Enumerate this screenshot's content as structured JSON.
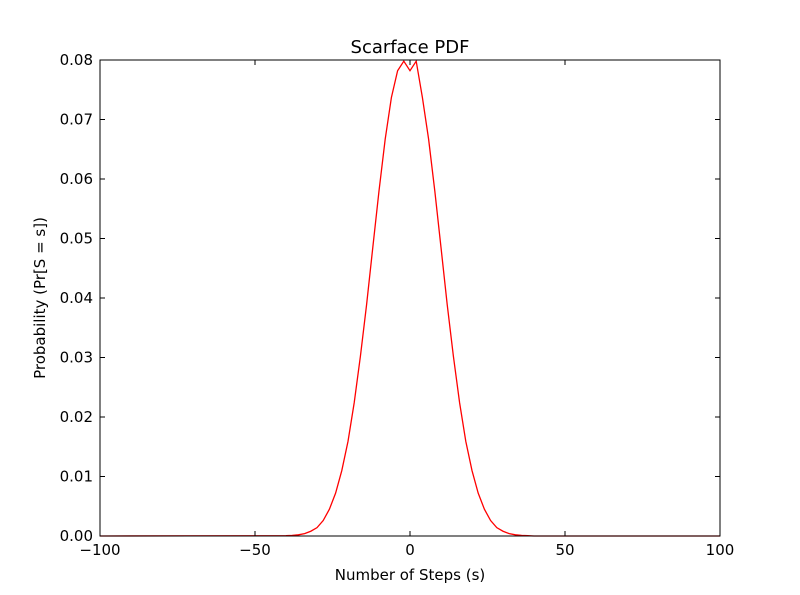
{
  "chart_data": {
    "type": "line",
    "title": "Scarface PDF",
    "xlabel": "Number of Steps (s)",
    "ylabel": "Probability (Pr[S = s])",
    "xlim": [
      -100,
      100
    ],
    "ylim": [
      0,
      0.08
    ],
    "x_ticks": [
      -100,
      -50,
      0,
      50,
      100
    ],
    "x_tick_labels": [
      "−100",
      "−50",
      "0",
      "50",
      "100"
    ],
    "y_ticks": [
      0.0,
      0.01,
      0.02,
      0.03,
      0.04,
      0.05,
      0.06,
      0.07,
      0.08
    ],
    "y_tick_labels": [
      "0.00",
      "0.01",
      "0.02",
      "0.03",
      "0.04",
      "0.05",
      "0.06",
      "0.07",
      "0.08"
    ],
    "grid": false,
    "legend": null,
    "colors": {
      "line": "#ff0000",
      "axes": "#000000",
      "background": "#ffffff"
    },
    "series": [
      {
        "name": "Pr[S = s]",
        "x": [
          -100,
          -40,
          -38,
          -36,
          -34,
          -32,
          -30,
          -28,
          -26,
          -24,
          -22,
          -20,
          -18,
          -16,
          -14,
          -12,
          -10,
          -8,
          -6,
          -4,
          -2,
          0,
          2,
          4,
          6,
          8,
          10,
          12,
          14,
          16,
          18,
          20,
          22,
          24,
          26,
          28,
          30,
          32,
          34,
          36,
          38,
          40,
          100
        ],
        "values": [
          0.0,
          5e-05,
          0.0001,
          0.0002,
          0.0004,
          0.0008,
          0.0014,
          0.0026,
          0.0045,
          0.0072,
          0.011,
          0.0159,
          0.0224,
          0.0302,
          0.0389,
          0.0485,
          0.058,
          0.0667,
          0.0737,
          0.0782,
          0.0798,
          0.0782,
          0.0798,
          0.0737,
          0.0667,
          0.058,
          0.0485,
          0.0389,
          0.0302,
          0.0224,
          0.0159,
          0.011,
          0.0072,
          0.0045,
          0.0026,
          0.0014,
          0.0008,
          0.0004,
          0.0002,
          0.0001,
          5e-05,
          0.0,
          0.0
        ]
      }
    ]
  }
}
